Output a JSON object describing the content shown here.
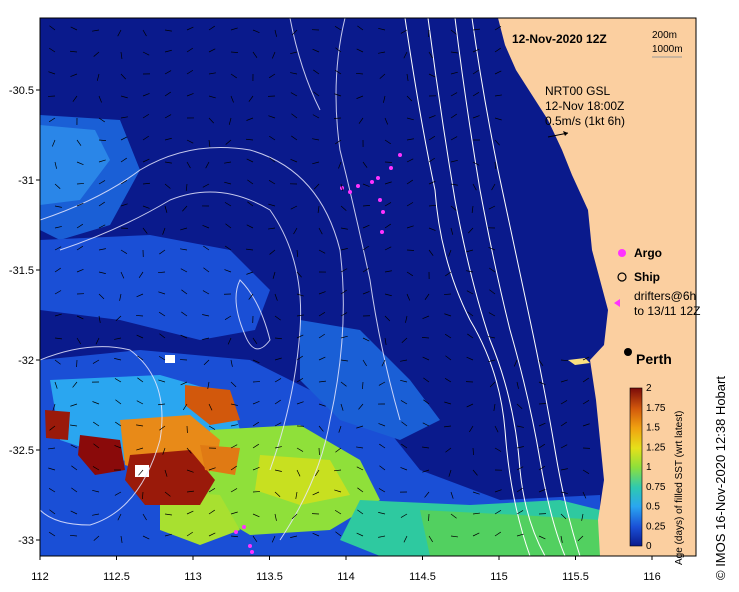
{
  "title": "12-Nov-2020 12Z",
  "depth_legend": [
    "200m",
    "1000m"
  ],
  "current_info": [
    "NRT00 GSL",
    "12-Nov 18:00Z",
    "0.5m/s (1kt 6h)"
  ],
  "legend": {
    "argo": "Argo",
    "ship": "Ship",
    "drifters_line1": "drifters@6h",
    "drifters_line2": "to 13/11 12Z"
  },
  "place": "Perth",
  "x_ticks": [
    "112",
    "112.5",
    "113",
    "113.5",
    "114",
    "114.5",
    "115",
    "115.5",
    "116"
  ],
  "y_ticks": [
    "-30.5",
    "-31",
    "-31.5",
    "-32",
    "-32.5",
    "-33"
  ],
  "colorbar": {
    "title": "Age (days) of filled SST (wrt latest)",
    "ticks": [
      "2",
      "1.75",
      "1.5",
      "1.25",
      "1",
      "0.75",
      "0.5",
      "0.25",
      "0"
    ]
  },
  "credit": "© IMOS 16-Nov-2020 12:38 Hobart",
  "colors": {
    "ocean_deep": "#0a1a8c",
    "land": "#fbcfa0",
    "argo": "#ff33ff",
    "contour": "#ffffff"
  }
}
